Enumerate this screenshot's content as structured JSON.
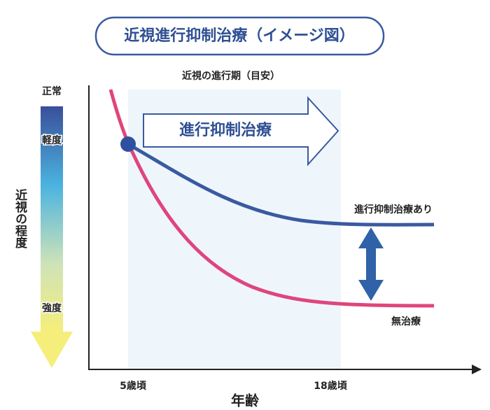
{
  "title": "近視進行抑制治療（イメージ図）",
  "period_label": "近視の進行期（目安）",
  "treatment_arrow_label": "進行抑制治療",
  "severity_scale": {
    "axis_label": "近視の程度",
    "levels": [
      "正常",
      "軽度",
      "強度"
    ]
  },
  "curves": {
    "treated": "進行抑制治療あり",
    "untreated": "無治療"
  },
  "x_axis": {
    "title": "年齢",
    "labels": [
      "5歳頃",
      "18歳頃"
    ]
  }
}
